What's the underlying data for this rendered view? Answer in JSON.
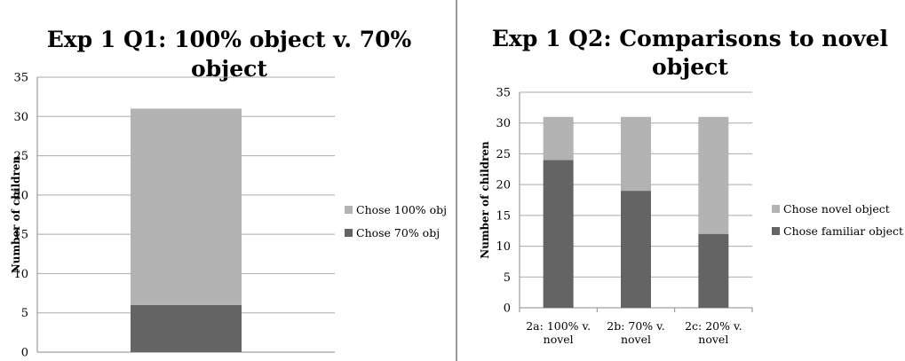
{
  "chart_data": [
    {
      "type": "bar",
      "stacked": true,
      "title_lines": [
        "Exp 1 Q1: 100% object v. 70%",
        "object"
      ],
      "ylabel": "Number of children",
      "xlabel": "",
      "ylim": [
        0,
        35
      ],
      "yticks": [
        0,
        5,
        10,
        15,
        20,
        25,
        30,
        35
      ],
      "grid": true,
      "legend_position": "right",
      "categories": [
        ""
      ],
      "series": [
        {
          "name": "Chose 70% obj",
          "values": [
            6
          ],
          "color": "#646464"
        },
        {
          "name": "Chose 100% obj",
          "values": [
            25
          ],
          "color": "#b3b3b3"
        }
      ]
    },
    {
      "type": "bar",
      "stacked": true,
      "title_lines": [
        "Exp 1 Q2: Comparisons to novel",
        "object"
      ],
      "ylabel": "Number of children",
      "xlabel": "",
      "ylim": [
        0,
        35
      ],
      "yticks": [
        0,
        5,
        10,
        15,
        20,
        25,
        30,
        35
      ],
      "grid": true,
      "legend_position": "right",
      "categories": [
        [
          "2a: 100% v.",
          "novel"
        ],
        [
          "2b: 70% v.",
          "novel"
        ],
        [
          "2c: 20% v.",
          "novel"
        ]
      ],
      "series": [
        {
          "name": "Chose familiar object",
          "values": [
            24,
            19,
            12
          ],
          "color": "#646464"
        },
        {
          "name": "Chose novel object",
          "values": [
            7,
            12,
            19
          ],
          "color": "#b3b3b3"
        }
      ]
    }
  ]
}
